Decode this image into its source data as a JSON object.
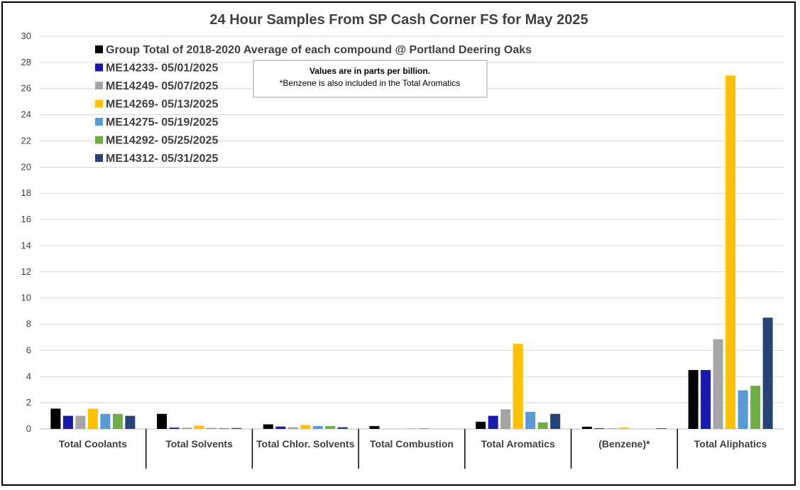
{
  "chart_data": {
    "type": "bar",
    "title": "24 Hour Samples From SP Cash Corner FS for May 2025",
    "ylim": [
      0,
      30
    ],
    "yticks": [
      0,
      2,
      4,
      6,
      8,
      10,
      12,
      14,
      16,
      18,
      20,
      22,
      24,
      26,
      28,
      30
    ],
    "grid": true,
    "legend_position": "top-left",
    "categories": [
      "Total Coolants",
      "Total Solvents",
      "Total Chlor. Solvents",
      "Total Combustion",
      "Total Aromatics",
      "(Benzene)*",
      "Total Aliphatics"
    ],
    "series": [
      {
        "name": "Group Total of 2018-2020 Average of each compound @ Portland Deering Oaks",
        "color": "#000000",
        "values": [
          1.55,
          1.15,
          0.35,
          0.22,
          0.55,
          0.17,
          4.5
        ]
      },
      {
        "name": "ME14233- 05/01/2025",
        "color": "#1a1aaa",
        "values": [
          1.0,
          0.1,
          0.18,
          0.0,
          1.0,
          0.05,
          4.5
        ]
      },
      {
        "name": "ME14249- 05/07/2025",
        "color": "#a5a5a5",
        "values": [
          1.0,
          0.1,
          0.13,
          0.0,
          1.5,
          0.05,
          6.85
        ]
      },
      {
        "name": "ME14269- 05/13/2025",
        "color": "#ffc000",
        "values": [
          1.55,
          0.25,
          0.3,
          0.05,
          6.5,
          0.1,
          27.0
        ]
      },
      {
        "name": "ME14275- 05/19/2025",
        "color": "#5b9bd5",
        "values": [
          1.15,
          0.07,
          0.22,
          0.05,
          1.3,
          0.0,
          2.95
        ]
      },
      {
        "name": "ME14292- 05/25/2025",
        "color": "#70ad47",
        "values": [
          1.15,
          0.07,
          0.22,
          0.0,
          0.5,
          0.0,
          3.3
        ]
      },
      {
        "name": "ME14312- 05/31/2025",
        "color": "#264478",
        "values": [
          1.0,
          0.07,
          0.13,
          0.0,
          1.15,
          0.05,
          8.5
        ]
      }
    ],
    "annotation": {
      "line1": "Values are in parts per billion.",
      "line2": "*Benzene is also included in the Total Aromatics"
    }
  }
}
